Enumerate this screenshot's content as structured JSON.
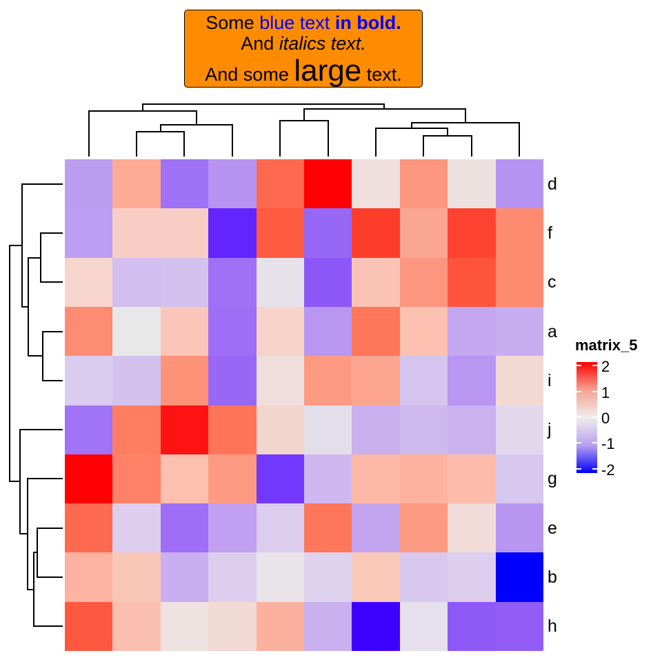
{
  "title": {
    "line1": {
      "plain": "Some ",
      "blue": "blue text ",
      "blue_bold": "in bold."
    },
    "line2": {
      "plain": "And ",
      "italic": "italics text."
    },
    "line3": {
      "plain1": "And some ",
      "large": "large",
      "plain2": " text."
    },
    "box_color": "#FF8C00",
    "blue_color": "#0000FF"
  },
  "legend": {
    "title": "matrix_5",
    "ticks": [
      "2",
      "1",
      "0",
      "-1",
      "-2"
    ],
    "colors": {
      "high": "#FF0000",
      "mid": "#EEEEEE",
      "low": "#0000FF"
    }
  },
  "chart_data": {
    "type": "heatmap",
    "title": "Some blue text in bold. And italics text. And some large text.",
    "row_labels": [
      "d",
      "f",
      "c",
      "a",
      "i",
      "j",
      "g",
      "e",
      "b",
      "h"
    ],
    "column_count": 10,
    "color_scale": {
      "min": -2,
      "max": 2,
      "low": "#0000FF",
      "mid": "#EEEEEE",
      "high": "#FF0000"
    },
    "legend_title": "matrix_5",
    "row_dendrogram": true,
    "column_dendrogram": true,
    "cell_colors": [
      [
        "#BC9EF1",
        "#FDAB95",
        "#9E71F6",
        "#B793F2",
        "#FE6A4F",
        "#FF0004",
        "#EFDFDD",
        "#FC967E",
        "#EDE1DF",
        "#B693F2"
      ],
      [
        "#BC9EF2",
        "#F8CDC4",
        "#F7CDC4",
        "#6325FE",
        "#FE5B41",
        "#9767F6",
        "#FC3D2A",
        "#FBA692",
        "#FE4431",
        "#FE8A70"
      ],
      [
        "#F5D5CC",
        "#D2BEEF",
        "#D4C2EE",
        "#A070F5",
        "#E7E2EA",
        "#8C57F6",
        "#FBC3B6",
        "#FC967E",
        "#FE543C",
        "#FE8A70"
      ],
      [
        "#FE8C72",
        "#E8E8E8",
        "#FBC5B9",
        "#9E6EF6",
        "#F7D3CA",
        "#B896F2",
        "#FE775A",
        "#FDC1B2",
        "#C4A7EF",
        "#C7ADEF"
      ],
      [
        "#DACCEE",
        "#D3C2EE",
        "#FE937A",
        "#9967F6",
        "#EFDEDC",
        "#FD9A82",
        "#FCA690",
        "#D5C4EE",
        "#B896F2",
        "#F2DAD3"
      ],
      [
        "#A072F5",
        "#FE7E62",
        "#FE1212",
        "#FE7559",
        "#F2D6CE",
        "#E4DEEA",
        "#C9B0EF",
        "#CFBAEF",
        "#CAB2EF",
        "#E1D8EC"
      ],
      [
        "#FF0004",
        "#FE8168",
        "#FDBFAE",
        "#FD9A83",
        "#7238FD",
        "#D0B7EF",
        "#FDB9A7",
        "#FCB29F",
        "#FDBCAB",
        "#D7C6EE"
      ],
      [
        "#FE6A4F",
        "#DDCEEE",
        "#9E6EF6",
        "#C19FF1",
        "#DCCDEE",
        "#FE775C",
        "#C4A6F0",
        "#FC9B81",
        "#F1DCD9",
        "#B995F2"
      ],
      [
        "#FCB3A2",
        "#FAC6B8",
        "#C9AEF0",
        "#DDCEEE",
        "#E8E4EA",
        "#DED2EE",
        "#FAC8B9",
        "#D8C8EE",
        "#DDCEEE",
        "#0000FF"
      ],
      [
        "#FE5840",
        "#FBBFB2",
        "#EEE3E1",
        "#F2DAD4",
        "#FCB19F",
        "#C9B0EF",
        "#3E00FE",
        "#E5E0EB",
        "#8E58F6",
        "#935CF6"
      ]
    ]
  }
}
